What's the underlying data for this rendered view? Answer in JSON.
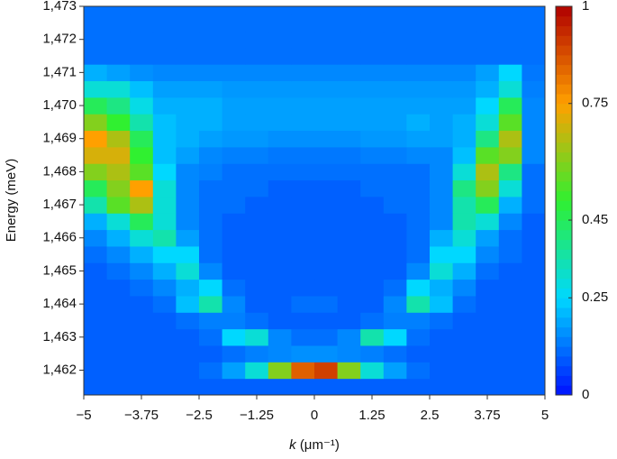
{
  "chart_data": {
    "type": "heatmap",
    "xlabel_var": "k",
    "xlabel_unit": "(μm⁻¹)",
    "ylabel": "Energy (meV)",
    "xlim": [
      -5,
      5
    ],
    "ylim": [
      1461.25,
      1473
    ],
    "xticks": [
      {
        "value": -5,
        "label": "−5"
      },
      {
        "value": -3.75,
        "label": "−3.75"
      },
      {
        "value": -2.5,
        "label": "−2.5"
      },
      {
        "value": -1.25,
        "label": "−1.25"
      },
      0,
      1.25,
      2.5,
      3.75,
      5
    ],
    "yticks": [
      {
        "value": 1462,
        "label": "1,462"
      },
      {
        "value": 1463,
        "label": "1,463"
      },
      {
        "value": 1464,
        "label": "1,464"
      },
      {
        "value": 1465,
        "label": "1,465"
      },
      {
        "value": 1466,
        "label": "1,466"
      },
      {
        "value": 1467,
        "label": "1,467"
      },
      {
        "value": 1468,
        "label": "1,468"
      },
      {
        "value": 1469,
        "label": "1,469"
      },
      {
        "value": 1470,
        "label": "1,470"
      },
      {
        "value": 1471,
        "label": "1,471"
      },
      {
        "value": 1472,
        "label": "1,472"
      },
      {
        "value": 1473,
        "label": "1,473"
      }
    ],
    "zlim": [
      0,
      1
    ],
    "zticks": [
      0,
      0.25,
      0.45,
      0.75,
      1
    ],
    "colorscale": [
      "#0010ff",
      "#00d8ff",
      "#30f030",
      "#ffa000",
      "#b00000"
    ],
    "xbins": [
      -5,
      -4.5,
      -4,
      -3.5,
      -3,
      -2.5,
      -2,
      -1.5,
      -1,
      -0.5,
      0,
      0.5,
      1,
      1.5,
      2,
      2.5,
      3,
      3.5,
      4,
      4.5,
      5
    ],
    "ybins": [
      1461.25,
      1461.75,
      1462.25,
      1462.75,
      1463.25,
      1463.75,
      1464.25,
      1464.75,
      1465.25,
      1465.75,
      1466.25,
      1466.75,
      1467.25,
      1467.75,
      1468.25,
      1468.75,
      1469.25,
      1469.75,
      1470.25,
      1470.75,
      1471.25,
      1471.75,
      1472.25,
      1472.75,
      1473
    ],
    "z": [
      [
        0.1,
        0.1,
        0.1,
        0.1,
        0.1,
        0.1,
        0.1,
        0.1,
        0.1,
        0.1,
        0.1,
        0.1,
        0.1,
        0.1,
        0.1,
        0.1,
        0.1,
        0.1,
        0.1,
        0.1
      ],
      [
        0.1,
        0.1,
        0.1,
        0.1,
        0.1,
        0.12,
        0.18,
        0.3,
        0.6,
        0.85,
        0.9,
        0.6,
        0.3,
        0.18,
        0.12,
        0.1,
        0.1,
        0.1,
        0.1,
        0.1
      ],
      [
        0.1,
        0.1,
        0.1,
        0.1,
        0.1,
        0.1,
        0.12,
        0.14,
        0.15,
        0.16,
        0.16,
        0.15,
        0.14,
        0.12,
        0.1,
        0.1,
        0.1,
        0.1,
        0.1,
        0.1
      ],
      [
        0.1,
        0.1,
        0.1,
        0.1,
        0.1,
        0.12,
        0.25,
        0.3,
        0.15,
        0.12,
        0.12,
        0.15,
        0.35,
        0.25,
        0.12,
        0.1,
        0.1,
        0.1,
        0.1,
        0.1
      ],
      [
        0.1,
        0.1,
        0.1,
        0.1,
        0.12,
        0.14,
        0.14,
        0.12,
        0.1,
        0.1,
        0.1,
        0.1,
        0.12,
        0.14,
        0.14,
        0.12,
        0.1,
        0.1,
        0.1,
        0.1
      ],
      [
        0.1,
        0.1,
        0.1,
        0.12,
        0.22,
        0.35,
        0.15,
        0.1,
        0.1,
        0.12,
        0.12,
        0.1,
        0.1,
        0.15,
        0.35,
        0.22,
        0.12,
        0.1,
        0.1,
        0.1
      ],
      [
        0.1,
        0.1,
        0.12,
        0.15,
        0.2,
        0.25,
        0.12,
        0.1,
        0.1,
        0.1,
        0.1,
        0.1,
        0.1,
        0.12,
        0.25,
        0.2,
        0.15,
        0.1,
        0.1,
        0.1
      ],
      [
        0.1,
        0.12,
        0.15,
        0.2,
        0.3,
        0.15,
        0.1,
        0.1,
        0.1,
        0.1,
        0.1,
        0.1,
        0.1,
        0.1,
        0.15,
        0.3,
        0.2,
        0.12,
        0.1,
        0.1
      ],
      [
        0.12,
        0.15,
        0.2,
        0.25,
        0.25,
        0.12,
        0.1,
        0.1,
        0.1,
        0.1,
        0.1,
        0.1,
        0.1,
        0.1,
        0.12,
        0.25,
        0.25,
        0.15,
        0.12,
        0.1
      ],
      [
        0.15,
        0.2,
        0.3,
        0.35,
        0.18,
        0.12,
        0.1,
        0.1,
        0.1,
        0.1,
        0.1,
        0.1,
        0.1,
        0.1,
        0.12,
        0.2,
        0.3,
        0.18,
        0.12,
        0.1
      ],
      [
        0.2,
        0.3,
        0.45,
        0.3,
        0.15,
        0.12,
        0.1,
        0.1,
        0.1,
        0.1,
        0.1,
        0.1,
        0.1,
        0.1,
        0.12,
        0.15,
        0.35,
        0.3,
        0.15,
        0.1
      ],
      [
        0.35,
        0.55,
        0.65,
        0.3,
        0.15,
        0.12,
        0.12,
        0.1,
        0.1,
        0.1,
        0.1,
        0.1,
        0.1,
        0.12,
        0.12,
        0.15,
        0.35,
        0.45,
        0.2,
        0.12
      ],
      [
        0.45,
        0.6,
        0.75,
        0.3,
        0.15,
        0.12,
        0.12,
        0.12,
        0.1,
        0.1,
        0.1,
        0.1,
        0.12,
        0.12,
        0.12,
        0.15,
        0.4,
        0.6,
        0.3,
        0.12
      ],
      [
        0.6,
        0.65,
        0.55,
        0.25,
        0.15,
        0.14,
        0.12,
        0.12,
        0.12,
        0.12,
        0.12,
        0.12,
        0.12,
        0.12,
        0.12,
        0.15,
        0.3,
        0.65,
        0.4,
        0.12
      ],
      [
        0.7,
        0.7,
        0.5,
        0.22,
        0.18,
        0.15,
        0.14,
        0.14,
        0.13,
        0.13,
        0.13,
        0.13,
        0.14,
        0.14,
        0.15,
        0.15,
        0.22,
        0.55,
        0.6,
        0.15
      ],
      [
        0.75,
        0.65,
        0.45,
        0.22,
        0.2,
        0.18,
        0.17,
        0.17,
        0.16,
        0.16,
        0.16,
        0.16,
        0.17,
        0.17,
        0.18,
        0.18,
        0.2,
        0.4,
        0.65,
        0.15
      ],
      [
        0.6,
        0.5,
        0.35,
        0.22,
        0.2,
        0.2,
        0.18,
        0.18,
        0.18,
        0.18,
        0.18,
        0.18,
        0.18,
        0.18,
        0.2,
        0.18,
        0.2,
        0.3,
        0.55,
        0.15
      ],
      [
        0.45,
        0.4,
        0.28,
        0.2,
        0.2,
        0.2,
        0.18,
        0.18,
        0.18,
        0.18,
        0.18,
        0.18,
        0.18,
        0.18,
        0.18,
        0.18,
        0.18,
        0.25,
        0.45,
        0.15
      ],
      [
        0.3,
        0.3,
        0.22,
        0.18,
        0.18,
        0.18,
        0.17,
        0.17,
        0.17,
        0.17,
        0.17,
        0.17,
        0.17,
        0.17,
        0.17,
        0.17,
        0.17,
        0.2,
        0.3,
        0.14
      ],
      [
        0.2,
        0.18,
        0.16,
        0.15,
        0.15,
        0.15,
        0.15,
        0.15,
        0.15,
        0.15,
        0.15,
        0.15,
        0.15,
        0.15,
        0.15,
        0.15,
        0.15,
        0.18,
        0.25,
        0.13
      ],
      [
        0.12,
        0.12,
        0.12,
        0.12,
        0.12,
        0.12,
        0.12,
        0.12,
        0.12,
        0.12,
        0.12,
        0.12,
        0.12,
        0.12,
        0.12,
        0.12,
        0.12,
        0.12,
        0.12,
        0.12
      ],
      [
        0.12,
        0.12,
        0.12,
        0.12,
        0.12,
        0.12,
        0.12,
        0.12,
        0.12,
        0.12,
        0.12,
        0.12,
        0.12,
        0.12,
        0.12,
        0.12,
        0.12,
        0.12,
        0.12,
        0.12
      ],
      [
        0.12,
        0.12,
        0.12,
        0.12,
        0.12,
        0.12,
        0.12,
        0.12,
        0.12,
        0.12,
        0.12,
        0.12,
        0.12,
        0.12,
        0.12,
        0.12,
        0.12,
        0.12,
        0.12,
        0.12
      ],
      [
        0.12,
        0.12,
        0.12,
        0.12,
        0.12,
        0.12,
        0.12,
        0.12,
        0.12,
        0.12,
        0.12,
        0.12,
        0.12,
        0.12,
        0.12,
        0.12,
        0.12,
        0.12,
        0.12,
        0.12
      ]
    ]
  }
}
